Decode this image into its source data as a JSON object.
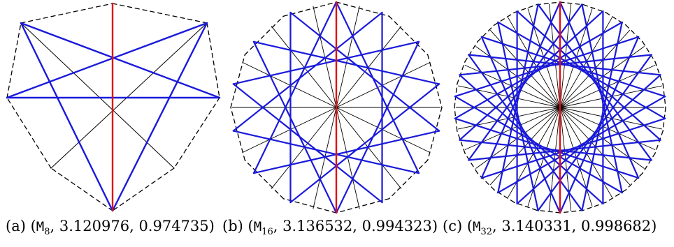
{
  "figure": {
    "panels": [
      {
        "id": "a",
        "n": 8,
        "label": "(a)",
        "name": "M",
        "sub": "8",
        "v1": "3.120976",
        "v2": "0.974735"
      },
      {
        "id": "b",
        "n": 16,
        "label": "(b)",
        "name": "M",
        "sub": "16",
        "v1": "3.136532",
        "v2": "0.994323"
      },
      {
        "id": "c",
        "n": 32,
        "label": "(c)",
        "name": "M",
        "sub": "32",
        "v1": "3.140331",
        "v2": "0.998682"
      }
    ],
    "colors": {
      "polygon": "#000000",
      "spokes": "#000000",
      "star": "#1a1adb",
      "axis": "#e01010"
    }
  }
}
